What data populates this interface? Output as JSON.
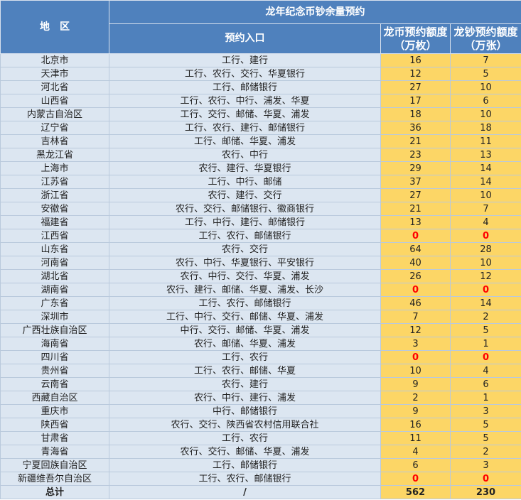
{
  "header": {
    "region": "地　区",
    "group": "龙年纪念币钞余量预约",
    "entry": "预约入口",
    "coin": "龙币预约额度（万枚）",
    "note": "龙钞预约额度（万张）"
  },
  "table": {
    "rows": [
      [
        "北京市",
        "工行、建行",
        16,
        7
      ],
      [
        "天津市",
        "工行、农行、交行、华夏银行",
        12,
        5
      ],
      [
        "河北省",
        "工行、邮储银行",
        27,
        10
      ],
      [
        "山西省",
        "工行、农行、中行、浦发、华夏",
        17,
        6
      ],
      [
        "内蒙古自治区",
        "工行、交行、邮储、华夏、浦发",
        18,
        10
      ],
      [
        "辽宁省",
        "工行、农行、建行、邮储银行",
        36,
        18
      ],
      [
        "吉林省",
        "工行、邮储、华夏、浦发",
        21,
        11
      ],
      [
        "黑龙江省",
        "农行、中行",
        23,
        13
      ],
      [
        "上海市",
        "农行、建行、华夏银行",
        29,
        14
      ],
      [
        "江苏省",
        "工行、中行、邮储",
        37,
        14
      ],
      [
        "浙江省",
        "农行、建行、交行",
        27,
        10
      ],
      [
        "安徽省",
        "农行、交行、邮储银行、徽商银行",
        21,
        7
      ],
      [
        "福建省",
        "工行、中行、建行、邮储银行",
        13,
        4
      ],
      [
        "江西省",
        "工行、农行、邮储银行",
        0,
        0
      ],
      [
        "山东省",
        "农行、交行",
        64,
        28
      ],
      [
        "河南省",
        "农行、中行、华夏银行、平安银行",
        40,
        10
      ],
      [
        "湖北省",
        "农行、中行、交行、华夏、浦发",
        26,
        12
      ],
      [
        "湖南省",
        "农行、建行、邮储、华夏、浦发、长沙",
        0,
        0
      ],
      [
        "广东省",
        "工行、农行、邮储银行",
        46,
        14
      ],
      [
        "深圳市",
        "工行、中行、交行、邮储、华夏、浦发",
        7,
        2
      ],
      [
        "广西壮族自治区",
        "中行、交行、邮储、华夏、浦发",
        12,
        5
      ],
      [
        "海南省",
        "农行、邮储、华夏、浦发",
        3,
        1
      ],
      [
        "四川省",
        "工行、农行",
        0,
        0
      ],
      [
        "贵州省",
        "工行、农行、邮储、华夏",
        10,
        4
      ],
      [
        "云南省",
        "农行、建行",
        9,
        6
      ],
      [
        "西藏自治区",
        "农行、中行、建行、浦发",
        2,
        1
      ],
      [
        "重庆市",
        "中行、邮储银行",
        9,
        3
      ],
      [
        "陕西省",
        "农行、交行、陕西省农村信用联合社",
        16,
        5
      ],
      [
        "甘肃省",
        "工行、农行",
        11,
        5
      ],
      [
        "青海省",
        "农行、交行、邮储、华夏、浦发",
        4,
        2
      ],
      [
        "宁夏回族自治区",
        "工行、邮储银行",
        6,
        3
      ],
      [
        "新疆维吾尔自治区",
        "工行、农行、邮储银行",
        0,
        0
      ]
    ],
    "total": [
      "总计",
      "/",
      562,
      230
    ]
  }
}
